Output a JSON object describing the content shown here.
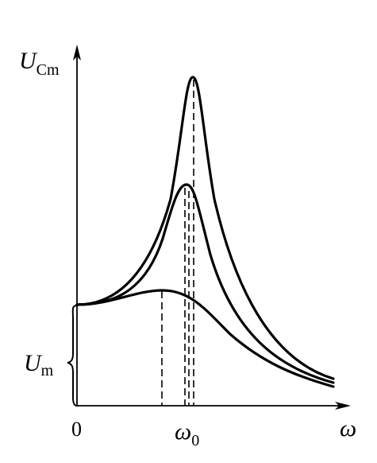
{
  "y_axis_label": {
    "symbol": "U",
    "subscript": "Cm"
  },
  "amplitude_label": {
    "symbol": "U",
    "subscript": "m"
  },
  "origin_label": "0",
  "resonance_label": {
    "symbol": "ω",
    "subscript": "0"
  },
  "x_axis_label": "ω"
}
